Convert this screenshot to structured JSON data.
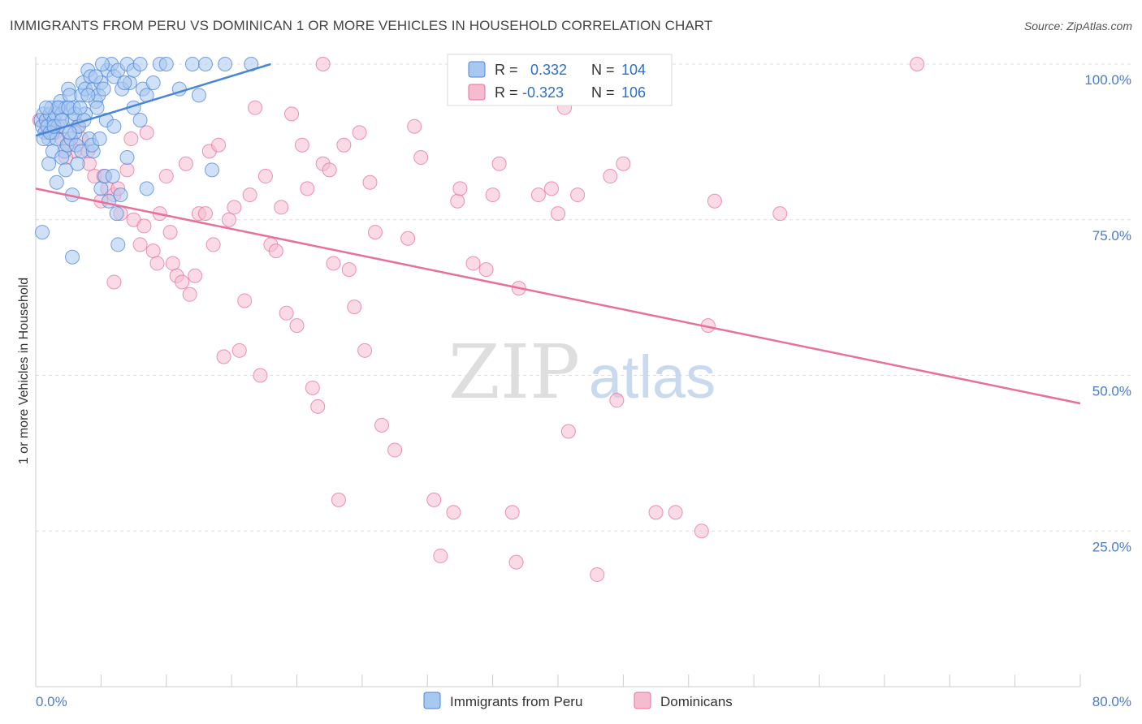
{
  "title": "IMMIGRANTS FROM PERU VS DOMINICAN 1 OR MORE VEHICLES IN HOUSEHOLD CORRELATION CHART",
  "source": "Source: ZipAtlas.com",
  "watermark": {
    "zip": "ZIP",
    "atlas": "atlas"
  },
  "colors": {
    "peru": "#4a86d8",
    "peru_fill": "#a9c8f0",
    "dominican": "#e8709a",
    "dominican_fill": "#f5bcd0",
    "tick": "#4a7cc9"
  },
  "legend": {
    "r_label": "R =",
    "n_label": "N =",
    "peru": {
      "r": "0.332",
      "n": "104"
    },
    "dominican": {
      "r": "-0.323",
      "n": "106"
    }
  },
  "chart_data": {
    "type": "scatter",
    "xlabel": "",
    "ylabel": "1 or more Vehicles in Household",
    "xlim": [
      0,
      80
    ],
    "ylim": [
      0,
      100
    ],
    "x_tick_labels": [
      "0.0%",
      "80.0%"
    ],
    "y_tick_labels": [
      "100.0%",
      "75.0%",
      "50.0%",
      "25.0%"
    ],
    "y_ticks": [
      100,
      75,
      50,
      25
    ],
    "grid": true,
    "legend_position": "top-center",
    "series": [
      {
        "name": "Immigrants from Peru",
        "trend": {
          "x": [
            0.0,
            18.0
          ],
          "y": [
            88.5,
            100.0
          ]
        },
        "points": [
          [
            0.4,
            91
          ],
          [
            0.5,
            90
          ],
          [
            0.6,
            92
          ],
          [
            0.7,
            89
          ],
          [
            0.8,
            91
          ],
          [
            0.9,
            90
          ],
          [
            1.0,
            88
          ],
          [
            1.1,
            92
          ],
          [
            1.2,
            93
          ],
          [
            1.3,
            89
          ],
          [
            1.4,
            91
          ],
          [
            1.5,
            92
          ],
          [
            1.6,
            88
          ],
          [
            1.7,
            90
          ],
          [
            1.8,
            93
          ],
          [
            1.9,
            94
          ],
          [
            2.0,
            92
          ],
          [
            2.1,
            90
          ],
          [
            2.2,
            86
          ],
          [
            2.3,
            93
          ],
          [
            2.4,
            87
          ],
          [
            2.5,
            96
          ],
          [
            2.6,
            95
          ],
          [
            2.7,
            88
          ],
          [
            2.8,
            91
          ],
          [
            2.9,
            93
          ],
          [
            3.0,
            89
          ],
          [
            3.1,
            87
          ],
          [
            3.3,
            90
          ],
          [
            3.5,
            95
          ],
          [
            3.6,
            97
          ],
          [
            3.8,
            96
          ],
          [
            4.0,
            99
          ],
          [
            4.2,
            98
          ],
          [
            4.4,
            96
          ],
          [
            4.6,
            94
          ],
          [
            4.8,
            95
          ],
          [
            5.0,
            97
          ],
          [
            5.2,
            96
          ],
          [
            5.5,
            99
          ],
          [
            5.8,
            100
          ],
          [
            6.0,
            98
          ],
          [
            6.3,
            99
          ],
          [
            6.6,
            96
          ],
          [
            7.0,
            100
          ],
          [
            7.2,
            97
          ],
          [
            7.5,
            99
          ],
          [
            8.0,
            100
          ],
          [
            8.2,
            96
          ],
          [
            8.5,
            95
          ],
          [
            9.5,
            100
          ],
          [
            10.0,
            100
          ],
          [
            11.0,
            96
          ],
          [
            12.0,
            100
          ],
          [
            12.5,
            95
          ],
          [
            13.0,
            100
          ],
          [
            14.5,
            100
          ],
          [
            16.5,
            100
          ],
          [
            0.5,
            73
          ],
          [
            1.0,
            84
          ],
          [
            1.3,
            86
          ],
          [
            1.6,
            81
          ],
          [
            2.0,
            85
          ],
          [
            2.3,
            83
          ],
          [
            2.8,
            79
          ],
          [
            3.2,
            84
          ],
          [
            3.5,
            86
          ],
          [
            3.8,
            92
          ],
          [
            4.1,
            88
          ],
          [
            4.4,
            86
          ],
          [
            4.7,
            93
          ],
          [
            5.0,
            80
          ],
          [
            5.3,
            82
          ],
          [
            5.6,
            78
          ],
          [
            5.9,
            82
          ],
          [
            6.2,
            76
          ],
          [
            6.5,
            79
          ],
          [
            7.0,
            85
          ],
          [
            7.5,
            93
          ],
          [
            8.0,
            91
          ],
          [
            8.5,
            80
          ],
          [
            13.5,
            83
          ],
          [
            2.8,
            69
          ],
          [
            6.3,
            71
          ],
          [
            0.6,
            88
          ],
          [
            1.1,
            89
          ],
          [
            1.7,
            93
          ],
          [
            2.6,
            89
          ],
          [
            3.0,
            92
          ],
          [
            3.7,
            91
          ],
          [
            4.3,
            87
          ],
          [
            4.9,
            88
          ],
          [
            5.4,
            91
          ],
          [
            6.0,
            90
          ],
          [
            0.8,
            93
          ],
          [
            1.4,
            90
          ],
          [
            2.0,
            91
          ],
          [
            2.5,
            93
          ],
          [
            3.4,
            93
          ],
          [
            4.0,
            95
          ],
          [
            4.6,
            98
          ],
          [
            5.1,
            100
          ],
          [
            6.8,
            97
          ],
          [
            9.0,
            97
          ]
        ]
      },
      {
        "name": "Dominicans",
        "trend": {
          "x": [
            0.0,
            80.0
          ],
          "y": [
            80.0,
            45.5
          ]
        },
        "points": [
          [
            0.3,
            91
          ],
          [
            1.0,
            90
          ],
          [
            1.5,
            89
          ],
          [
            2.0,
            88
          ],
          [
            2.5,
            87
          ],
          [
            3.0,
            86
          ],
          [
            3.5,
            88
          ],
          [
            4.0,
            86
          ],
          [
            4.5,
            82
          ],
          [
            5.0,
            78
          ],
          [
            5.5,
            80
          ],
          [
            6.0,
            79
          ],
          [
            6.5,
            76
          ],
          [
            7.0,
            83
          ],
          [
            7.5,
            75
          ],
          [
            8.0,
            71
          ],
          [
            8.5,
            89
          ],
          [
            9.0,
            70
          ],
          [
            9.5,
            76
          ],
          [
            10.0,
            82
          ],
          [
            10.5,
            68
          ],
          [
            10.8,
            66
          ],
          [
            11.2,
            65
          ],
          [
            11.5,
            84
          ],
          [
            11.8,
            63
          ],
          [
            12.2,
            66
          ],
          [
            12.5,
            76
          ],
          [
            13.0,
            76
          ],
          [
            13.3,
            86
          ],
          [
            13.6,
            71
          ],
          [
            14.0,
            87
          ],
          [
            14.4,
            53
          ],
          [
            14.8,
            75
          ],
          [
            15.2,
            77
          ],
          [
            15.6,
            54
          ],
          [
            16.0,
            62
          ],
          [
            16.4,
            79
          ],
          [
            16.8,
            93
          ],
          [
            17.2,
            50
          ],
          [
            17.6,
            82
          ],
          [
            18.0,
            71
          ],
          [
            18.4,
            70
          ],
          [
            18.8,
            77
          ],
          [
            19.2,
            60
          ],
          [
            19.6,
            92
          ],
          [
            20.0,
            58
          ],
          [
            20.4,
            87
          ],
          [
            20.8,
            80
          ],
          [
            21.2,
            48
          ],
          [
            21.6,
            45
          ],
          [
            22.0,
            84
          ],
          [
            22.5,
            83
          ],
          [
            22.8,
            68
          ],
          [
            23.2,
            30
          ],
          [
            23.6,
            87
          ],
          [
            24.0,
            67
          ],
          [
            24.4,
            61
          ],
          [
            24.8,
            89
          ],
          [
            25.2,
            54
          ],
          [
            25.6,
            81
          ],
          [
            26.0,
            73
          ],
          [
            26.5,
            42
          ],
          [
            27.5,
            38
          ],
          [
            28.5,
            72
          ],
          [
            29.0,
            90
          ],
          [
            29.5,
            85
          ],
          [
            30.5,
            30
          ],
          [
            31.0,
            21
          ],
          [
            32.0,
            28
          ],
          [
            32.3,
            78
          ],
          [
            32.5,
            80
          ],
          [
            33.5,
            68
          ],
          [
            34.5,
            67
          ],
          [
            35.0,
            79
          ],
          [
            35.5,
            84
          ],
          [
            36.5,
            28
          ],
          [
            36.8,
            20
          ],
          [
            37.0,
            64
          ],
          [
            38.5,
            79
          ],
          [
            39.5,
            80
          ],
          [
            40.0,
            76
          ],
          [
            40.5,
            93
          ],
          [
            40.8,
            41
          ],
          [
            41.5,
            79
          ],
          [
            43.0,
            18
          ],
          [
            44.0,
            82
          ],
          [
            44.5,
            46
          ],
          [
            45.0,
            84
          ],
          [
            47.5,
            28
          ],
          [
            49.0,
            28
          ],
          [
            51.0,
            25
          ],
          [
            51.5,
            58
          ],
          [
            52.0,
            78
          ],
          [
            57.0,
            76
          ],
          [
            67.5,
            100
          ],
          [
            2.3,
            85
          ],
          [
            3.2,
            90
          ],
          [
            4.1,
            84
          ],
          [
            5.2,
            82
          ],
          [
            6.3,
            80
          ],
          [
            7.3,
            88
          ],
          [
            8.3,
            74
          ],
          [
            9.3,
            68
          ],
          [
            10.3,
            73
          ],
          [
            6.0,
            65
          ],
          [
            22.0,
            100
          ]
        ]
      }
    ]
  },
  "bottom_legend": [
    {
      "label": "Immigrants from Peru"
    },
    {
      "label": "Dominicans"
    }
  ]
}
